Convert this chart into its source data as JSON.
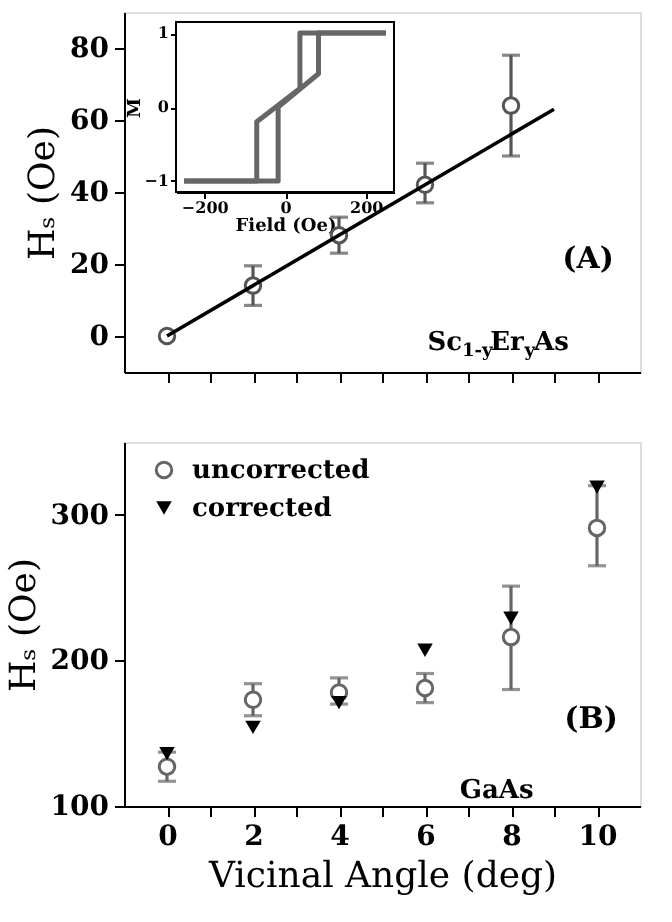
{
  "chart_data": [
    {
      "type": "scatter",
      "ylabel": "Hₛ (Oe)",
      "xlim": [
        -1,
        11
      ],
      "xticks": [
        0,
        {
          "value": 1,
          "label": null
        },
        2,
        {
          "value": 3,
          "label": null
        },
        4,
        {
          "value": 5,
          "label": null
        },
        6,
        {
          "value": 7,
          "label": null
        },
        8,
        {
          "value": 9,
          "label": null
        },
        10
      ],
      "ylim": [
        -10,
        90
      ],
      "yticks": [
        0,
        20,
        40,
        60,
        80
      ],
      "tick_labels": "y",
      "annotations": [
        "(A)",
        "Sc$_{1-y}$Er$_{y}$As"
      ],
      "series": [
        {
          "type": "scatter",
          "color": "#555555",
          "marker": "circle",
          "x": [
            0,
            2,
            4,
            6,
            8
          ],
          "values": [
            0,
            14,
            28,
            42,
            64
          ],
          "errors": [
            null,
            [
              8.5,
              19.5
            ],
            [
              23,
              33
            ],
            [
              37,
              48
            ],
            [
              50,
              78
            ]
          ]
        },
        {
          "type": "line",
          "color": "#000000",
          "x": [
            0,
            9
          ],
          "values": [
            0,
            63
          ]
        }
      ]
    },
    {
      "type": "line",
      "xlabel": "Field (Oe)",
      "ylabel": "M",
      "xlim": [
        -270,
        270
      ],
      "xticks": [
        -200,
        0,
        200
      ],
      "ylim": [
        -1.15,
        1.15
      ],
      "yticks": [
        -1,
        0,
        1
      ],
      "series": [
        {
          "color": "#666666",
          "x": [
            250,
            37,
            37,
            -70,
            -70,
            -250
          ],
          "values": [
            1,
            1,
            0.25,
            -0.2,
            -1,
            -1
          ]
        },
        {
          "color": "#666666",
          "x": [
            -250,
            -17,
            -17,
            83,
            83,
            250
          ],
          "values": [
            -1,
            -1,
            0.0,
            0.45,
            1,
            1
          ]
        }
      ]
    },
    {
      "type": "scatter",
      "xlabel": "Vicinal Angle (deg)",
      "ylabel": "Hₛ (Oe)",
      "xlim": [
        -1,
        11
      ],
      "xticks": [
        0,
        {
          "value": 1,
          "label": null
        },
        2,
        {
          "value": 3,
          "label": null
        },
        4,
        {
          "value": 5,
          "label": null
        },
        6,
        {
          "value": 7,
          "label": null
        },
        8,
        {
          "value": 9,
          "label": null
        },
        10
      ],
      "ylim": [
        100,
        350
      ],
      "yticks": [
        100,
        200,
        300
      ],
      "legend": "top left",
      "annotations": [
        "(B)",
        "GaAs"
      ],
      "series": [
        {
          "name": "uncorrected",
          "color": "#666666",
          "marker": "circle",
          "x": [
            0,
            2,
            4,
            6,
            8,
            10
          ],
          "values": [
            127,
            173,
            178,
            181,
            216,
            291
          ],
          "errors": [
            [
              117,
              137
            ],
            [
              162,
              184
            ],
            [
              170,
              188
            ],
            [
              171,
              191
            ],
            [
              180,
              251
            ],
            [
              265,
              320
            ]
          ]
        },
        {
          "name": "corrected",
          "color": "#000000",
          "marker": "triangle",
          "x": [
            0,
            2,
            4,
            6,
            8,
            10
          ],
          "values": [
            136,
            154,
            171,
            207,
            229,
            319
          ]
        }
      ]
    }
  ]
}
